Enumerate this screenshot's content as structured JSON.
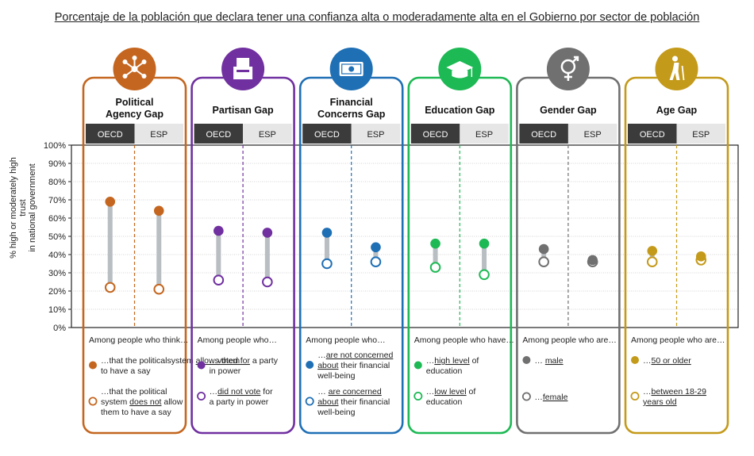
{
  "title": "Porcentaje de la población que declara tener una confianza alta o moderadamente alta en el Gobierno por sector de población",
  "chart_data": {
    "type": "dumbbell",
    "ylabel_line1": "% high or moderately high trust",
    "ylabel_line2": "in national government",
    "ylim": [
      0,
      100
    ],
    "yticks": [
      "0%",
      "10%",
      "20%",
      "30%",
      "40%",
      "50%",
      "60%",
      "70%",
      "80%",
      "90%",
      "100%"
    ],
    "col_labels": [
      "OECD",
      "ESP"
    ],
    "panels": [
      {
        "name_lines": [
          "Political",
          "Agency Gap"
        ],
        "color": "#c4661f",
        "icon": "network-icon",
        "values": [
          {
            "high": 69,
            "low": 22
          },
          {
            "high": 64,
            "low": 21
          }
        ],
        "intro": "Among people who think…",
        "legend": [
          {
            "filled": true,
            "parts": [
              [
                "…that the political",
                ""
              ],
              [
                "system ",
                ""
              ],
              [
                "allows",
                "u"
              ],
              [
                " them",
                ""
              ],
              [
                "|to have a say",
                ""
              ]
            ]
          },
          {
            "filled": false,
            "parts": [
              [
                "…that the political",
                ""
              ],
              [
                "|system ",
                ""
              ],
              [
                "does not",
                "u"
              ],
              [
                " allow",
                ""
              ],
              [
                "|them to have a say",
                ""
              ]
            ]
          }
        ]
      },
      {
        "name_lines": [
          "Partisan Gap"
        ],
        "color": "#7030a0",
        "icon": "ballot-box-icon",
        "values": [
          {
            "high": 53,
            "low": 26
          },
          {
            "high": 52,
            "low": 25
          }
        ],
        "intro": "Among people who…",
        "legend": [
          {
            "filled": true,
            "parts": [
              [
                "…",
                ""
              ],
              [
                "voted for",
                "u"
              ],
              [
                " a party",
                ""
              ],
              [
                "|in power",
                ""
              ]
            ]
          },
          {
            "filled": false,
            "parts": [
              [
                "…",
                ""
              ],
              [
                "did not vote",
                "u"
              ],
              [
                " for",
                ""
              ],
              [
                "|a party in power",
                ""
              ]
            ]
          }
        ]
      },
      {
        "name_lines": [
          "Financial",
          "Concerns Gap"
        ],
        "color": "#1f6fb5",
        "icon": "banknote-icon",
        "values": [
          {
            "high": 52,
            "low": 35
          },
          {
            "high": 44,
            "low": 36
          }
        ],
        "intro": "Among people who…",
        "legend": [
          {
            "filled": true,
            "parts": [
              [
                "…",
                ""
              ],
              [
                "are not concerned",
                "u"
              ],
              [
                "|",
                ""
              ],
              [
                "about",
                "u"
              ],
              [
                " their financial",
                ""
              ],
              [
                "|well-being",
                ""
              ]
            ]
          },
          {
            "filled": false,
            "parts": [
              [
                "… ",
                ""
              ],
              [
                "are concerned",
                "u"
              ],
              [
                "|",
                ""
              ],
              [
                "about",
                "u"
              ],
              [
                " their financial",
                ""
              ],
              [
                "|well-being",
                ""
              ]
            ]
          }
        ]
      },
      {
        "name_lines": [
          "Education Gap"
        ],
        "color": "#1db954",
        "icon": "graduation-cap-icon",
        "values": [
          {
            "high": 46,
            "low": 33
          },
          {
            "high": 46,
            "low": 29
          }
        ],
        "intro": "Among people who have…",
        "legend": [
          {
            "filled": true,
            "parts": [
              [
                "…",
                ""
              ],
              [
                "high level",
                "u"
              ],
              [
                " of",
                ""
              ],
              [
                "|education",
                ""
              ]
            ]
          },
          {
            "filled": false,
            "parts": [
              [
                "…",
                ""
              ],
              [
                "low level",
                "u"
              ],
              [
                " of",
                ""
              ],
              [
                "|education",
                ""
              ]
            ]
          }
        ]
      },
      {
        "name_lines": [
          "Gender Gap"
        ],
        "color": "#707070",
        "icon": "gender-icon",
        "values": [
          {
            "high": 43,
            "low": 36
          },
          {
            "high": 37,
            "low": 36
          }
        ],
        "intro": "Among people who are…",
        "legend": [
          {
            "filled": true,
            "parts": [
              [
                "… ",
                ""
              ],
              [
                "male",
                "u"
              ]
            ]
          },
          {
            "filled": false,
            "parts": [
              [
                "…",
                ""
              ],
              [
                "female",
                "u"
              ]
            ]
          }
        ]
      },
      {
        "name_lines": [
          "Age Gap"
        ],
        "color": "#c49a1a",
        "icon": "elderly-person-icon",
        "values": [
          {
            "high": 42,
            "low": 36
          },
          {
            "high": 39,
            "low": 37
          }
        ],
        "intro": "Among people who are…",
        "legend": [
          {
            "filled": true,
            "parts": [
              [
                "…",
                ""
              ],
              [
                "50 or older",
                "u"
              ]
            ]
          },
          {
            "filled": false,
            "parts": [
              [
                "…",
                ""
              ],
              [
                "between 18-29",
                "u"
              ],
              [
                "|",
                ""
              ],
              [
                "years old",
                "u"
              ]
            ]
          }
        ]
      }
    ]
  }
}
